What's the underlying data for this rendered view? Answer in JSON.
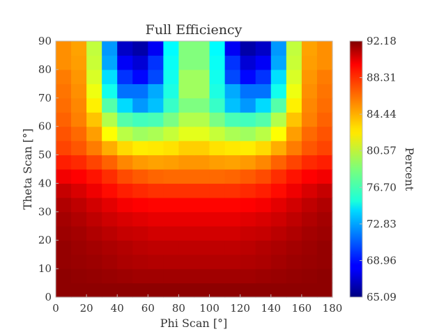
{
  "chart_data": {
    "type": "heatmap",
    "title": "Full Efficiency",
    "xlabel": "Phi Scan [°]",
    "ylabel": "Theta Scan [°]",
    "xlim": [
      0,
      180
    ],
    "ylim": [
      0,
      90
    ],
    "x_ticks": [
      "0",
      "20",
      "40",
      "60",
      "80",
      "100",
      "120",
      "140",
      "160",
      "180"
    ],
    "y_ticks": [
      "0",
      "10",
      "20",
      "30",
      "40",
      "50",
      "60",
      "70",
      "80",
      "90"
    ],
    "x_tick_values": [
      0,
      20,
      40,
      60,
      80,
      100,
      120,
      140,
      160,
      180
    ],
    "y_tick_values": [
      0,
      10,
      20,
      30,
      40,
      50,
      60,
      70,
      80,
      90
    ],
    "x_edges": [
      0,
      10,
      20,
      30,
      40,
      50,
      60,
      70,
      80,
      90,
      100,
      110,
      120,
      130,
      140,
      150,
      160,
      170,
      180
    ],
    "y_edges": [
      0,
      5,
      10,
      15,
      20,
      25,
      30,
      35,
      40,
      45,
      50,
      55,
      60,
      65,
      70,
      75,
      80,
      85,
      90
    ],
    "colorbar": {
      "label": "Percent",
      "min": 65.09,
      "max": 92.18,
      "ticks": [
        "92.18",
        "88.31",
        "84.44",
        "80.57",
        "76.70",
        "72.83",
        "68.96",
        "65.09"
      ],
      "colormap": "jet"
    },
    "grid": false,
    "values": [
      [
        91.8,
        91.8,
        91.8,
        91.8,
        91.8,
        91.8,
        91.8,
        91.8,
        91.8,
        91.8,
        91.8,
        91.8,
        91.8,
        91.8,
        91.8,
        91.8,
        91.8,
        91.8
      ],
      [
        91.8,
        91.7,
        91.6,
        91.5,
        91.4,
        91.3,
        91.3,
        91.3,
        91.3,
        91.3,
        91.3,
        91.3,
        91.3,
        91.4,
        91.5,
        91.6,
        91.7,
        91.8
      ],
      [
        91.6,
        91.5,
        91.4,
        91.2,
        91.0,
        90.9,
        90.8,
        90.8,
        90.8,
        90.8,
        90.8,
        90.8,
        90.9,
        91.0,
        91.2,
        91.4,
        91.5,
        91.6
      ],
      [
        91.6,
        91.4,
        91.2,
        91.0,
        90.8,
        90.6,
        90.5,
        90.5,
        90.5,
        90.5,
        90.5,
        90.5,
        90.6,
        90.8,
        91.0,
        91.2,
        91.4,
        91.6
      ],
      [
        91.4,
        91.2,
        90.9,
        90.6,
        90.3,
        90.2,
        90.0,
        90.0,
        90.0,
        90.0,
        90.0,
        90.0,
        90.2,
        90.3,
        90.6,
        90.9,
        91.2,
        91.4
      ],
      [
        91.2,
        90.9,
        90.5,
        90.1,
        89.8,
        89.6,
        89.4,
        89.4,
        89.4,
        89.4,
        89.4,
        89.4,
        89.6,
        89.8,
        90.1,
        90.5,
        90.9,
        91.2
      ],
      [
        90.9,
        90.5,
        90.0,
        89.5,
        89.0,
        88.8,
        88.7,
        88.7,
        88.7,
        88.7,
        88.7,
        88.7,
        88.8,
        89.0,
        89.5,
        90.0,
        90.5,
        90.9
      ],
      [
        90.3,
        89.8,
        89.2,
        88.5,
        88.0,
        87.7,
        87.5,
        87.5,
        87.5,
        87.5,
        87.5,
        87.5,
        87.7,
        88.0,
        88.5,
        89.2,
        89.8,
        90.3
      ],
      [
        89.1,
        88.8,
        88.3,
        87.6,
        86.8,
        86.4,
        86.1,
        86.0,
        86.0,
        86.0,
        86.0,
        86.1,
        86.4,
        86.8,
        87.6,
        88.3,
        88.8,
        89.1
      ],
      [
        88.0,
        87.7,
        87.0,
        86.2,
        85.2,
        84.7,
        84.5,
        84.6,
        84.8,
        84.8,
        84.6,
        84.5,
        84.7,
        85.2,
        86.2,
        87.0,
        87.7,
        88.0
      ],
      [
        87.0,
        86.5,
        85.5,
        84.2,
        83.0,
        82.5,
        82.6,
        82.8,
        83.3,
        83.3,
        82.8,
        82.6,
        82.5,
        83.0,
        84.2,
        85.5,
        86.5,
        87.0
      ],
      [
        86.6,
        86.0,
        84.6,
        82.0,
        80.2,
        79.5,
        79.8,
        80.5,
        81.3,
        81.3,
        80.5,
        79.8,
        79.5,
        80.2,
        82.0,
        84.6,
        86.0,
        86.6
      ],
      [
        86.2,
        85.4,
        83.6,
        80.0,
        77.5,
        77.0,
        77.2,
        78.5,
        80.0,
        80.0,
        78.5,
        77.2,
        77.0,
        77.5,
        80.0,
        83.6,
        85.4,
        86.2
      ],
      [
        85.9,
        85.2,
        82.4,
        77.5,
        74.3,
        72.5,
        73.6,
        76.7,
        78.6,
        78.6,
        76.7,
        73.6,
        72.5,
        74.3,
        77.5,
        82.4,
        85.2,
        85.9
      ],
      [
        85.7,
        85.0,
        81.6,
        75.7,
        71.5,
        71.5,
        73.0,
        76.0,
        79.5,
        79.5,
        76.0,
        73.0,
        71.5,
        71.5,
        75.7,
        81.6,
        85.0,
        85.7
      ],
      [
        85.5,
        84.8,
        81.0,
        74.4,
        69.8,
        68.6,
        70.4,
        75.7,
        79.5,
        79.5,
        75.7,
        70.4,
        68.6,
        69.8,
        74.4,
        81.0,
        84.8,
        85.5
      ],
      [
        85.0,
        84.6,
        80.6,
        72.9,
        68.3,
        67.4,
        69.8,
        75.5,
        78.7,
        78.7,
        75.5,
        69.8,
        67.4,
        68.3,
        72.9,
        80.6,
        84.6,
        85.0
      ],
      [
        85.0,
        84.5,
        80.4,
        72.5,
        67.0,
        66.2,
        68.2,
        75.2,
        78.7,
        78.7,
        75.2,
        68.2,
        66.2,
        67.0,
        72.5,
        80.4,
        84.5,
        85.0
      ]
    ]
  }
}
